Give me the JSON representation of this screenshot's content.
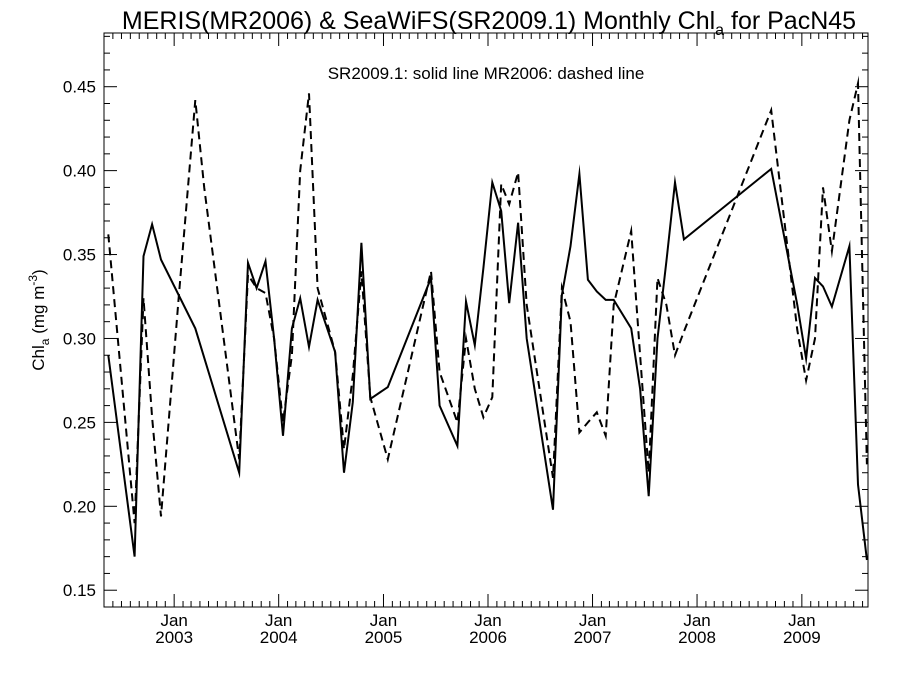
{
  "chart_data": {
    "type": "line",
    "title": {
      "main": "MERIS(MR2006) & SeaWiFS(SR2009.1) Monthly Chl",
      "sub": "a",
      "tail": " for PacN45"
    },
    "annotation": "SR2009.1: solid line   MR2006: dashed line",
    "ylabel": {
      "main": "Chl",
      "sub": "a",
      "unit_open": " (mg m",
      "unit_sup": "-3",
      "unit_close": ")"
    },
    "ylim": [
      0.14,
      0.482
    ],
    "xlim": [
      "2002-05-01",
      "2009-08-20"
    ],
    "yticks": [
      "0.15",
      "0.20",
      "0.25",
      "0.30",
      "0.35",
      "0.40",
      "0.45"
    ],
    "xticks": [
      {
        "month": "Jan",
        "year": "2003",
        "date": "2003-01-01"
      },
      {
        "month": "Jan",
        "year": "2004",
        "date": "2004-01-01"
      },
      {
        "month": "Jan",
        "year": "2005",
        "date": "2005-01-01"
      },
      {
        "month": "Jan",
        "year": "2006",
        "date": "2006-01-01"
      },
      {
        "month": "Jan",
        "year": "2007",
        "date": "2007-01-01"
      },
      {
        "month": "Jan",
        "year": "2008",
        "date": "2008-01-01"
      },
      {
        "month": "Jan",
        "year": "2009",
        "date": "2009-01-01"
      }
    ],
    "grid": false,
    "series": [
      {
        "name": "SR2009.1",
        "style": "solid",
        "color": "#000000",
        "points": [
          [
            "2002-05-16",
            0.29
          ],
          [
            "2002-08-16",
            0.17
          ],
          [
            "2002-09-16",
            0.349
          ],
          [
            "2002-10-16",
            0.368
          ],
          [
            "2002-11-16",
            0.347
          ],
          [
            "2003-03-16",
            0.306
          ],
          [
            "2003-08-16",
            0.22
          ],
          [
            "2003-09-16",
            0.345
          ],
          [
            "2003-10-16",
            0.33
          ],
          [
            "2003-11-16",
            0.346
          ],
          [
            "2003-12-16",
            0.3
          ],
          [
            "2004-01-16",
            0.242
          ],
          [
            "2004-02-16",
            0.306
          ],
          [
            "2004-03-16",
            0.324
          ],
          [
            "2004-04-16",
            0.295
          ],
          [
            "2004-05-16",
            0.323
          ],
          [
            "2004-07-16",
            0.292
          ],
          [
            "2004-08-16",
            0.22
          ],
          [
            "2004-09-16",
            0.262
          ],
          [
            "2004-10-16",
            0.357
          ],
          [
            "2004-11-16",
            0.264
          ],
          [
            "2005-01-16",
            0.271
          ],
          [
            "2005-06-16",
            0.336
          ],
          [
            "2005-07-16",
            0.26
          ],
          [
            "2005-09-16",
            0.236
          ],
          [
            "2005-10-16",
            0.322
          ],
          [
            "2005-11-16",
            0.296
          ],
          [
            "2005-12-16",
            0.342
          ],
          [
            "2006-01-16",
            0.393
          ],
          [
            "2006-02-16",
            0.376
          ],
          [
            "2006-03-16",
            0.321
          ],
          [
            "2006-04-16",
            0.369
          ],
          [
            "2006-05-16",
            0.3
          ],
          [
            "2006-08-16",
            0.198
          ],
          [
            "2006-09-16",
            0.326
          ],
          [
            "2006-10-16",
            0.355
          ],
          [
            "2006-11-16",
            0.398
          ],
          [
            "2006-12-16",
            0.335
          ],
          [
            "2007-01-16",
            0.328
          ],
          [
            "2007-02-16",
            0.323
          ],
          [
            "2007-03-16",
            0.323
          ],
          [
            "2007-05-16",
            0.306
          ],
          [
            "2007-06-16",
            0.27
          ],
          [
            "2007-07-16",
            0.206
          ],
          [
            "2007-08-16",
            0.3
          ],
          [
            "2007-09-16",
            0.346
          ],
          [
            "2007-10-16",
            0.393
          ],
          [
            "2007-11-16",
            0.359
          ],
          [
            "2008-09-16",
            0.401
          ],
          [
            "2008-12-16",
            0.32
          ],
          [
            "2009-01-16",
            0.288
          ],
          [
            "2009-02-16",
            0.336
          ],
          [
            "2009-03-16",
            0.331
          ],
          [
            "2009-04-16",
            0.319
          ],
          [
            "2009-06-16",
            0.355
          ],
          [
            "2009-07-16",
            0.213
          ],
          [
            "2009-08-16",
            0.168
          ]
        ]
      },
      {
        "name": "MR2006",
        "style": "dashed",
        "color": "#000000",
        "points": [
          [
            "2002-05-16",
            0.362
          ],
          [
            "2002-08-16",
            0.19
          ],
          [
            "2002-09-16",
            0.324
          ],
          [
            "2002-10-16",
            0.253
          ],
          [
            "2002-11-16",
            0.194
          ],
          [
            "2003-01-16",
            0.323
          ],
          [
            "2003-03-16",
            0.442
          ],
          [
            "2003-04-16",
            0.39
          ],
          [
            "2003-08-16",
            0.228
          ],
          [
            "2003-09-16",
            0.338
          ],
          [
            "2003-10-16",
            0.33
          ],
          [
            "2003-11-16",
            0.327
          ],
          [
            "2003-12-16",
            0.3
          ],
          [
            "2004-01-16",
            0.25
          ],
          [
            "2004-02-16",
            0.29
          ],
          [
            "2004-03-16",
            0.4
          ],
          [
            "2004-04-16",
            0.446
          ],
          [
            "2004-05-16",
            0.33
          ],
          [
            "2004-07-16",
            0.292
          ],
          [
            "2004-08-16",
            0.234
          ],
          [
            "2004-09-16",
            0.278
          ],
          [
            "2004-10-16",
            0.34
          ],
          [
            "2004-11-16",
            0.265
          ],
          [
            "2005-01-16",
            0.228
          ],
          [
            "2005-06-16",
            0.34
          ],
          [
            "2005-07-16",
            0.28
          ],
          [
            "2005-09-16",
            0.25
          ],
          [
            "2005-10-16",
            0.3
          ],
          [
            "2005-11-16",
            0.27
          ],
          [
            "2005-12-16",
            0.253
          ],
          [
            "2006-01-16",
            0.265
          ],
          [
            "2006-02-16",
            0.392
          ],
          [
            "2006-03-16",
            0.38
          ],
          [
            "2006-04-16",
            0.399
          ],
          [
            "2006-05-16",
            0.32
          ],
          [
            "2006-08-16",
            0.217
          ],
          [
            "2006-09-16",
            0.33
          ],
          [
            "2006-10-16",
            0.31
          ],
          [
            "2006-11-16",
            0.244
          ],
          [
            "2006-12-16",
            0.25
          ],
          [
            "2007-01-16",
            0.256
          ],
          [
            "2007-02-16",
            0.242
          ],
          [
            "2007-03-16",
            0.32
          ],
          [
            "2007-05-16",
            0.364
          ],
          [
            "2007-06-16",
            0.29
          ],
          [
            "2007-07-16",
            0.22
          ],
          [
            "2007-08-16",
            0.336
          ],
          [
            "2007-09-16",
            0.32
          ],
          [
            "2007-10-16",
            0.29
          ],
          [
            "2007-11-16",
            0.304
          ],
          [
            "2008-09-16",
            0.436
          ],
          [
            "2008-12-16",
            0.305
          ],
          [
            "2009-01-16",
            0.275
          ],
          [
            "2009-02-16",
            0.3
          ],
          [
            "2009-03-16",
            0.39
          ],
          [
            "2009-04-16",
            0.352
          ],
          [
            "2009-06-16",
            0.43
          ],
          [
            "2009-07-16",
            0.452
          ],
          [
            "2009-08-16",
            0.225
          ]
        ]
      }
    ]
  }
}
